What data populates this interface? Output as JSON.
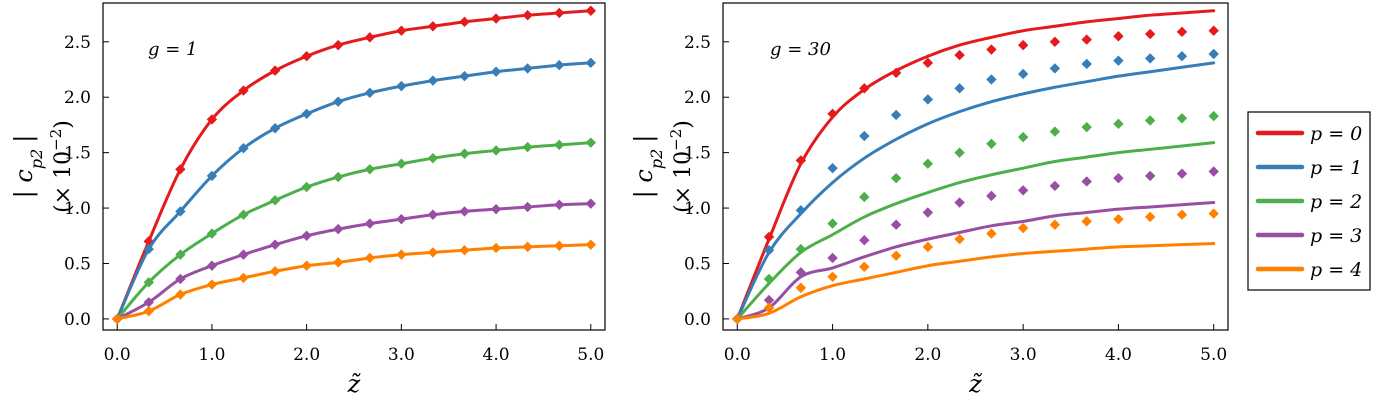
{
  "chart_data": [
    {
      "type": "line",
      "annotation": "g = 1",
      "xlabel": "z̃",
      "ylabel": "| c",
      "ylabel_sub": "p2",
      "ylabel_close": "|",
      "ylabel_unit": "(× 10",
      "ylabel_exp": "−2",
      "ylabel_unit_close": ")",
      "xlim": [
        -0.15,
        5.15
      ],
      "ylim": [
        -0.1,
        2.85
      ],
      "xticks": [
        0,
        1,
        2,
        3,
        4,
        5
      ],
      "xtick_labels": [
        "0.0",
        "1.0",
        "2.0",
        "3.0",
        "4.0",
        "5.0"
      ],
      "yticks": [
        0,
        0.5,
        1,
        1.5,
        2,
        2.5
      ],
      "ytick_labels": [
        "0.0",
        "0.5",
        "1.0",
        "1.5",
        "2.0",
        "2.5"
      ],
      "marker_x": [
        0,
        0.333,
        0.667,
        1,
        1.333,
        1.667,
        2,
        2.333,
        2.667,
        3,
        3.333,
        3.667,
        4,
        4.333,
        4.667,
        5
      ],
      "series": [
        {
          "name": "p = 0",
          "color": "#e41a1c",
          "line": [
            0,
            0.7,
            1.35,
            1.8,
            2.06,
            2.24,
            2.37,
            2.47,
            2.54,
            2.6,
            2.64,
            2.68,
            2.71,
            2.74,
            2.76,
            2.78
          ],
          "markers": [
            0,
            0.7,
            1.35,
            1.8,
            2.06,
            2.24,
            2.37,
            2.47,
            2.54,
            2.6,
            2.64,
            2.68,
            2.71,
            2.74,
            2.76,
            2.78
          ]
        },
        {
          "name": "p = 1",
          "color": "#377eb8",
          "line": [
            0,
            0.63,
            0.97,
            1.29,
            1.54,
            1.72,
            1.85,
            1.96,
            2.04,
            2.1,
            2.15,
            2.19,
            2.23,
            2.26,
            2.29,
            2.31
          ],
          "markers": [
            0,
            0.63,
            0.97,
            1.29,
            1.54,
            1.72,
            1.85,
            1.96,
            2.04,
            2.1,
            2.15,
            2.19,
            2.23,
            2.26,
            2.29,
            2.31
          ]
        },
        {
          "name": "p = 2",
          "color": "#4daf4a",
          "line": [
            0,
            0.33,
            0.58,
            0.77,
            0.94,
            1.07,
            1.19,
            1.28,
            1.35,
            1.4,
            1.45,
            1.49,
            1.52,
            1.55,
            1.57,
            1.59
          ],
          "markers": [
            0,
            0.33,
            0.58,
            0.77,
            0.94,
            1.07,
            1.19,
            1.28,
            1.35,
            1.4,
            1.45,
            1.49,
            1.52,
            1.55,
            1.57,
            1.59
          ]
        },
        {
          "name": "p = 3",
          "color": "#984ea3",
          "line": [
            0,
            0.15,
            0.36,
            0.48,
            0.58,
            0.67,
            0.75,
            0.81,
            0.86,
            0.9,
            0.94,
            0.97,
            0.99,
            1.01,
            1.03,
            1.04
          ],
          "markers": [
            0,
            0.15,
            0.36,
            0.48,
            0.58,
            0.67,
            0.75,
            0.81,
            0.86,
            0.9,
            0.94,
            0.97,
            0.99,
            1.01,
            1.03,
            1.04
          ]
        },
        {
          "name": "p = 4",
          "color": "#ff7f00",
          "line": [
            0,
            0.07,
            0.22,
            0.31,
            0.37,
            0.43,
            0.48,
            0.51,
            0.55,
            0.58,
            0.6,
            0.62,
            0.64,
            0.65,
            0.66,
            0.67
          ],
          "markers": [
            0,
            0.07,
            0.22,
            0.31,
            0.37,
            0.43,
            0.48,
            0.51,
            0.55,
            0.58,
            0.6,
            0.62,
            0.64,
            0.65,
            0.66,
            0.67
          ]
        }
      ]
    },
    {
      "type": "line",
      "annotation": "g = 30",
      "xlabel": "z̃",
      "ylabel": "| c",
      "ylabel_sub": "p2",
      "ylabel_close": "|",
      "ylabel_unit": "(× 10",
      "ylabel_exp": "−2",
      "ylabel_unit_close": ")",
      "xlim": [
        -0.15,
        5.15
      ],
      "ylim": [
        -0.1,
        2.85
      ],
      "xticks": [
        0,
        1,
        2,
        3,
        4,
        5
      ],
      "xtick_labels": [
        "0.0",
        "1.0",
        "2.0",
        "3.0",
        "4.0",
        "5.0"
      ],
      "yticks": [
        0,
        0.5,
        1,
        1.5,
        2,
        2.5
      ],
      "ytick_labels": [
        "0.0",
        "0.5",
        "1.0",
        "1.5",
        "2.0",
        "2.5"
      ],
      "marker_x": [
        0,
        0.333,
        0.667,
        1,
        1.333,
        1.667,
        2,
        2.333,
        2.667,
        3,
        3.333,
        3.667,
        4,
        4.333,
        4.667,
        5
      ],
      "series": [
        {
          "name": "p = 0",
          "color": "#e41a1c",
          "line": [
            0,
            0.72,
            1.4,
            1.82,
            2.07,
            2.24,
            2.37,
            2.47,
            2.54,
            2.6,
            2.64,
            2.68,
            2.71,
            2.74,
            2.76,
            2.78
          ],
          "markers": [
            0,
            0.74,
            1.43,
            1.85,
            2.08,
            2.22,
            2.31,
            2.38,
            2.43,
            2.47,
            2.5,
            2.52,
            2.55,
            2.57,
            2.59,
            2.6
          ]
        },
        {
          "name": "p = 1",
          "color": "#377eb8",
          "line": [
            0,
            0.6,
            0.95,
            1.23,
            1.45,
            1.62,
            1.76,
            1.87,
            1.96,
            2.03,
            2.09,
            2.14,
            2.19,
            2.23,
            2.27,
            2.31
          ],
          "markers": [
            0,
            0.62,
            0.98,
            1.36,
            1.65,
            1.84,
            1.98,
            2.08,
            2.16,
            2.21,
            2.26,
            2.3,
            2.33,
            2.35,
            2.37,
            2.39
          ]
        },
        {
          "name": "p = 2",
          "color": "#4daf4a",
          "line": [
            0,
            0.32,
            0.6,
            0.76,
            0.92,
            1.04,
            1.14,
            1.23,
            1.3,
            1.36,
            1.42,
            1.46,
            1.5,
            1.53,
            1.56,
            1.59
          ],
          "markers": [
            0,
            0.36,
            0.63,
            0.86,
            1.1,
            1.27,
            1.4,
            1.5,
            1.58,
            1.64,
            1.69,
            1.73,
            1.76,
            1.79,
            1.81,
            1.83
          ]
        },
        {
          "name": "p = 3",
          "color": "#984ea3",
          "line": [
            0,
            0.1,
            0.38,
            0.46,
            0.56,
            0.65,
            0.72,
            0.78,
            0.84,
            0.88,
            0.93,
            0.96,
            0.99,
            1.01,
            1.03,
            1.05
          ],
          "markers": [
            0,
            0.17,
            0.42,
            0.55,
            0.71,
            0.85,
            0.96,
            1.05,
            1.11,
            1.16,
            1.2,
            1.24,
            1.27,
            1.29,
            1.31,
            1.33
          ]
        },
        {
          "name": "p = 4",
          "color": "#ff7f00",
          "line": [
            0,
            0.05,
            0.2,
            0.3,
            0.36,
            0.42,
            0.48,
            0.52,
            0.56,
            0.59,
            0.61,
            0.63,
            0.65,
            0.66,
            0.67,
            0.68
          ],
          "markers": [
            0,
            0.1,
            0.28,
            0.38,
            0.47,
            0.57,
            0.65,
            0.72,
            0.77,
            0.82,
            0.85,
            0.88,
            0.9,
            0.92,
            0.94,
            0.95
          ]
        }
      ]
    }
  ],
  "legend": {
    "entries": [
      {
        "label": "p = 0",
        "color": "#e41a1c"
      },
      {
        "label": "p = 1",
        "color": "#377eb8"
      },
      {
        "label": "p = 2",
        "color": "#4daf4a"
      },
      {
        "label": "p = 3",
        "color": "#984ea3"
      },
      {
        "label": "p = 4",
        "color": "#ff7f00"
      }
    ]
  }
}
